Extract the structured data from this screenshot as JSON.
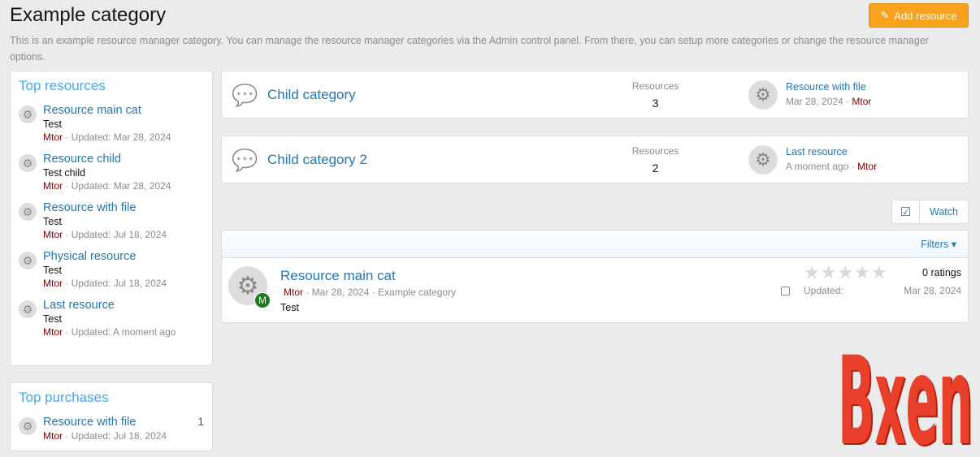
{
  "page": {
    "title": "Example category",
    "description": "This is an example resource manager category. You can manage the resource manager categories via the Admin control panel. From there, you can setup more categories or change the resource manager options.",
    "add_label": "Add resource"
  },
  "top_resources": {
    "title": "Top resources",
    "items": [
      {
        "title": "Resource main cat",
        "tag": "Test",
        "user": "Mtor",
        "meta": "· Updated: Mar 28, 2024"
      },
      {
        "title": "Resource child",
        "tag": "Test child",
        "user": "Mtor",
        "meta": "· Updated: Mar 28, 2024"
      },
      {
        "title": "Resource with file",
        "tag": "Test",
        "user": "Mtor",
        "meta": "· Updated: Jul 18, 2024"
      },
      {
        "title": "Physical resource",
        "tag": "Test",
        "user": "Mtor",
        "meta": "· Updated: Jul 18, 2024"
      },
      {
        "title": "Last resource",
        "tag": "Test",
        "user": "Mtor",
        "meta": "· Updated: A moment ago"
      }
    ]
  },
  "top_purchases": {
    "title": "Top purchases",
    "items": [
      {
        "title": "Resource with file",
        "count": "1",
        "user": "Mtor",
        "meta": "· Updated: Jul 18, 2024"
      }
    ]
  },
  "categories": [
    {
      "title": "Child category",
      "stat_label": "Resources",
      "stat": "3",
      "last_title": "Resource with file",
      "last_date": "Mar 28, 2024 ·",
      "last_user": "Mtor"
    },
    {
      "title": "Child category 2",
      "stat_label": "Resources",
      "stat": "2",
      "last_title": "Last resource",
      "last_date": "A moment ago ·",
      "last_user": "Mtor"
    }
  ],
  "watch_label": "Watch",
  "filters_label": "Filters ▾",
  "resource": {
    "title": "Resource main cat",
    "user": "Mtor",
    "meta": "· Mar 28, 2024 · Example category",
    "tag": "Test",
    "avatar_letter": "M",
    "ratings": "0 ratings",
    "rating_value": 0,
    "updated_label": "Updated:",
    "updated": "Mar 28, 2024"
  },
  "watermark": "Bxen"
}
